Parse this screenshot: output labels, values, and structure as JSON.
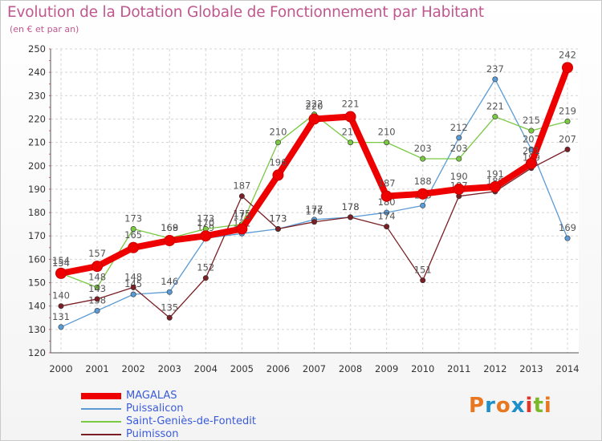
{
  "header": {
    "title": "Evolution de la Dotation Globale de Fonctionnement par Habitant",
    "subtitle": "(en € et par an)"
  },
  "logo": {
    "text": "Proxiti",
    "colors": [
      "#e87722",
      "#1e8fc9",
      "#e87722",
      "#1e8fc9",
      "#e5332a",
      "#7ab929",
      "#e87722"
    ]
  },
  "chart_data": {
    "type": "line",
    "x": [
      2000,
      2001,
      2002,
      2003,
      2004,
      2005,
      2006,
      2007,
      2008,
      2009,
      2010,
      2011,
      2012,
      2013,
      2014
    ],
    "ylim": [
      120,
      250
    ],
    "yticks": [
      120,
      130,
      140,
      150,
      160,
      170,
      180,
      190,
      200,
      210,
      220,
      230,
      240,
      250
    ],
    "grid": true,
    "legend_position": "bottom-left",
    "series": [
      {
        "name": "MAGALAS",
        "color": "#ee0000",
        "values": [
          154,
          157,
          165,
          168,
          170,
          173,
          196,
          220,
          221,
          187,
          188,
          190,
          191,
          201,
          242
        ]
      },
      {
        "name": "Puissalicon",
        "color": "#5b9bd5",
        "values": [
          131,
          138,
          145,
          146,
          169,
          171,
          173,
          177,
          178,
          180,
          183,
          212,
          237,
          207,
          169
        ]
      },
      {
        "name": "Saint-Geniès-de-Fontedit",
        "color": "#7ac943",
        "values": [
          154,
          148,
          173,
          169,
          173,
          175,
          210,
          222,
          210,
          210,
          203,
          203,
          221,
          215,
          219
        ]
      },
      {
        "name": "Puimisson",
        "color": "#7a1f24",
        "values": [
          140,
          143,
          148,
          135,
          152,
          187,
          173,
          176,
          178,
          174,
          151,
          187,
          189,
          199,
          207
        ]
      }
    ]
  }
}
